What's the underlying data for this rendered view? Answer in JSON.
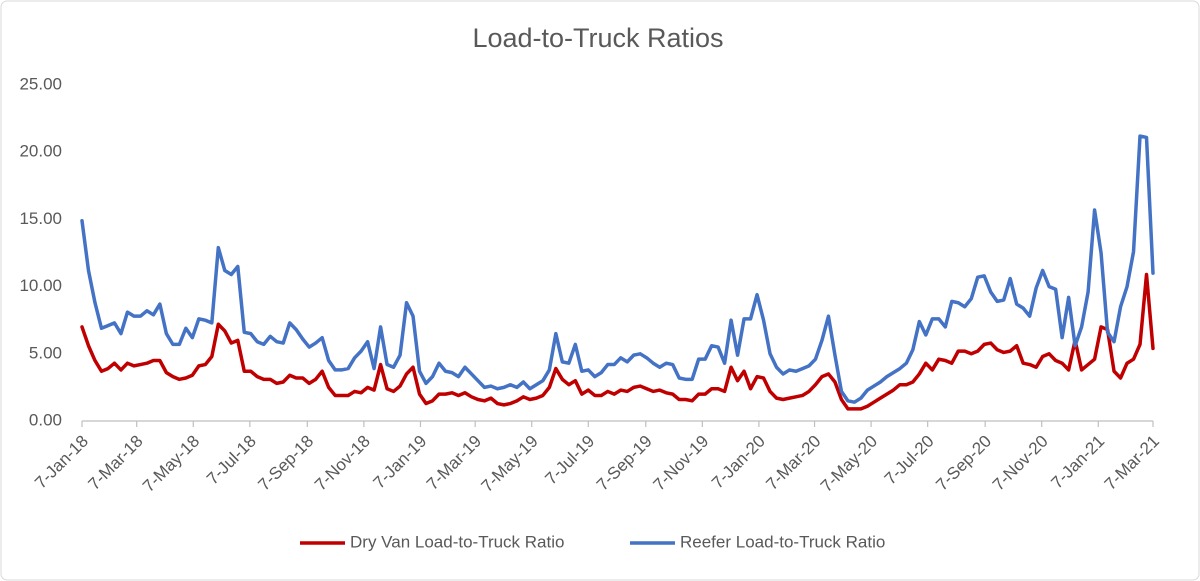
{
  "chart_data": {
    "type": "line",
    "title": "Load-to-Truck Ratios",
    "x": [
      "2018-01-07",
      "2018-01-14",
      "2018-01-21",
      "2018-01-28",
      "2018-02-04",
      "2018-02-11",
      "2018-02-18",
      "2018-02-25",
      "2018-03-04",
      "2018-03-11",
      "2018-03-18",
      "2018-03-25",
      "2018-04-01",
      "2018-04-08",
      "2018-04-15",
      "2018-04-22",
      "2018-04-29",
      "2018-05-06",
      "2018-05-13",
      "2018-05-20",
      "2018-05-27",
      "2018-06-03",
      "2018-06-10",
      "2018-06-17",
      "2018-06-24",
      "2018-07-01",
      "2018-07-08",
      "2018-07-15",
      "2018-07-22",
      "2018-07-29",
      "2018-08-05",
      "2018-08-12",
      "2018-08-19",
      "2018-08-26",
      "2018-09-02",
      "2018-09-09",
      "2018-09-16",
      "2018-09-23",
      "2018-09-30",
      "2018-10-07",
      "2018-10-14",
      "2018-10-21",
      "2018-10-28",
      "2018-11-04",
      "2018-11-11",
      "2018-11-18",
      "2018-11-25",
      "2018-12-02",
      "2018-12-09",
      "2018-12-16",
      "2018-12-23",
      "2018-12-30",
      "2019-01-06",
      "2019-01-13",
      "2019-01-20",
      "2019-01-27",
      "2019-02-03",
      "2019-02-10",
      "2019-02-17",
      "2019-02-24",
      "2019-03-03",
      "2019-03-10",
      "2019-03-17",
      "2019-03-24",
      "2019-03-31",
      "2019-04-07",
      "2019-04-14",
      "2019-04-21",
      "2019-04-28",
      "2019-05-05",
      "2019-05-12",
      "2019-05-19",
      "2019-05-26",
      "2019-06-02",
      "2019-06-09",
      "2019-06-16",
      "2019-06-23",
      "2019-06-30",
      "2019-07-07",
      "2019-07-14",
      "2019-07-21",
      "2019-07-28",
      "2019-08-04",
      "2019-08-11",
      "2019-08-18",
      "2019-08-25",
      "2019-09-01",
      "2019-09-08",
      "2019-09-15",
      "2019-09-22",
      "2019-09-29",
      "2019-10-06",
      "2019-10-13",
      "2019-10-20",
      "2019-10-27",
      "2019-11-03",
      "2019-11-10",
      "2019-11-17",
      "2019-11-24",
      "2019-12-01",
      "2019-12-08",
      "2019-12-15",
      "2019-12-22",
      "2019-12-29",
      "2020-01-05",
      "2020-01-12",
      "2020-01-19",
      "2020-01-26",
      "2020-02-02",
      "2020-02-09",
      "2020-02-16",
      "2020-02-23",
      "2020-03-01",
      "2020-03-08",
      "2020-03-15",
      "2020-03-22",
      "2020-03-29",
      "2020-04-05",
      "2020-04-12",
      "2020-04-19",
      "2020-04-26",
      "2020-05-03",
      "2020-05-10",
      "2020-05-17",
      "2020-05-24",
      "2020-05-31",
      "2020-06-07",
      "2020-06-14",
      "2020-06-21",
      "2020-06-28",
      "2020-07-05",
      "2020-07-12",
      "2020-07-19",
      "2020-07-26",
      "2020-08-02",
      "2020-08-09",
      "2020-08-16",
      "2020-08-23",
      "2020-08-30",
      "2020-09-06",
      "2020-09-13",
      "2020-09-20",
      "2020-09-27",
      "2020-10-04",
      "2020-10-11",
      "2020-10-18",
      "2020-10-25",
      "2020-11-01",
      "2020-11-08",
      "2020-11-15",
      "2020-11-22",
      "2020-11-29",
      "2020-12-06",
      "2020-12-13",
      "2020-12-20",
      "2020-12-27",
      "2021-01-03",
      "2021-01-10",
      "2021-01-17",
      "2021-01-24",
      "2021-01-31",
      "2021-02-07",
      "2021-02-14",
      "2021-02-21",
      "2021-02-28",
      "2021-03-07"
    ],
    "series": [
      {
        "name": "Dry Van Load-to-Truck Ratio",
        "color": "#c00000",
        "values": [
          7.0,
          5.6,
          4.5,
          3.7,
          3.9,
          4.3,
          3.8,
          4.3,
          4.1,
          4.2,
          4.3,
          4.5,
          4.5,
          3.6,
          3.3,
          3.1,
          3.2,
          3.4,
          4.1,
          4.2,
          4.8,
          7.2,
          6.7,
          5.8,
          6.0,
          3.7,
          3.7,
          3.3,
          3.1,
          3.1,
          2.8,
          2.9,
          3.4,
          3.2,
          3.2,
          2.8,
          3.1,
          3.7,
          2.5,
          1.9,
          1.9,
          1.9,
          2.2,
          2.1,
          2.5,
          2.3,
          4.2,
          2.4,
          2.2,
          2.6,
          3.5,
          4.0,
          2.0,
          1.3,
          1.5,
          2.0,
          2.0,
          2.1,
          1.9,
          2.1,
          1.8,
          1.6,
          1.5,
          1.7,
          1.3,
          1.2,
          1.3,
          1.5,
          1.8,
          1.6,
          1.7,
          1.9,
          2.5,
          3.9,
          3.1,
          2.7,
          3.0,
          2.0,
          2.3,
          1.9,
          1.9,
          2.2,
          2.0,
          2.3,
          2.2,
          2.5,
          2.6,
          2.4,
          2.2,
          2.3,
          2.1,
          2.0,
          1.6,
          1.6,
          1.5,
          2.0,
          2.0,
          2.4,
          2.4,
          2.2,
          4.0,
          3.0,
          3.7,
          2.4,
          3.3,
          3.2,
          2.2,
          1.7,
          1.6,
          1.7,
          1.8,
          1.9,
          2.2,
          2.7,
          3.3,
          3.5,
          2.9,
          1.6,
          0.9,
          0.9,
          0.9,
          1.1,
          1.4,
          1.7,
          2.0,
          2.3,
          2.7,
          2.7,
          2.9,
          3.5,
          4.3,
          3.8,
          4.6,
          4.5,
          4.3,
          5.2,
          5.2,
          5.0,
          5.2,
          5.7,
          5.8,
          5.3,
          5.1,
          5.2,
          5.6,
          4.3,
          4.2,
          4.0,
          4.8,
          5.0,
          4.5,
          4.3,
          3.8,
          6.0,
          3.8,
          4.2,
          4.6,
          7.0,
          6.8,
          3.7,
          3.2,
          4.3,
          4.6,
          5.7,
          10.9,
          5.4
        ]
      },
      {
        "name": "Reefer Load-to-Truck Ratio",
        "color": "#4472c4",
        "values": [
          14.9,
          11.2,
          8.8,
          6.9,
          7.1,
          7.3,
          6.5,
          8.1,
          7.8,
          7.8,
          8.2,
          7.9,
          8.7,
          6.5,
          5.7,
          5.7,
          6.9,
          6.2,
          7.6,
          7.5,
          7.3,
          12.9,
          11.2,
          10.9,
          11.5,
          6.6,
          6.5,
          5.9,
          5.7,
          6.3,
          5.9,
          5.8,
          7.3,
          6.8,
          6.1,
          5.5,
          5.8,
          6.2,
          4.5,
          3.8,
          3.8,
          3.9,
          4.7,
          5.2,
          5.9,
          3.9,
          7.0,
          4.2,
          4.0,
          4.9,
          8.8,
          7.8,
          3.7,
          2.8,
          3.3,
          4.3,
          3.7,
          3.6,
          3.3,
          4.0,
          3.5,
          3.0,
          2.5,
          2.6,
          2.4,
          2.5,
          2.7,
          2.5,
          2.9,
          2.4,
          2.7,
          3.0,
          3.8,
          6.5,
          4.4,
          4.3,
          5.7,
          3.7,
          3.8,
          3.3,
          3.6,
          4.2,
          4.2,
          4.7,
          4.4,
          4.9,
          5.0,
          4.7,
          4.3,
          4.0,
          4.3,
          4.2,
          3.2,
          3.1,
          3.1,
          4.6,
          4.6,
          5.6,
          5.5,
          4.3,
          7.5,
          4.9,
          7.6,
          7.6,
          9.4,
          7.5,
          5.0,
          4.0,
          3.5,
          3.8,
          3.7,
          3.9,
          4.1,
          4.6,
          6.0,
          7.8,
          4.9,
          2.2,
          1.5,
          1.4,
          1.7,
          2.3,
          2.6,
          2.9,
          3.3,
          3.6,
          3.9,
          4.3,
          5.3,
          7.4,
          6.4,
          7.6,
          7.6,
          7.0,
          8.9,
          8.8,
          8.5,
          9.1,
          10.7,
          10.8,
          9.6,
          8.9,
          9.0,
          10.6,
          8.7,
          8.4,
          7.8,
          9.9,
          11.2,
          10.0,
          9.8,
          6.2,
          9.2,
          5.6,
          7.0,
          9.6,
          15.7,
          12.5,
          6.6,
          5.9,
          8.5,
          10.0,
          12.6,
          21.2,
          21.1,
          11.0
        ]
      }
    ],
    "xlim": [
      "2018-01-07",
      "2021-03-07"
    ],
    "xticks": [
      {
        "value": "2018-01-07",
        "label": "7-Jan-18"
      },
      {
        "value": "2018-03-07",
        "label": "7-Mar-18"
      },
      {
        "value": "2018-05-07",
        "label": "7-May-18"
      },
      {
        "value": "2018-07-07",
        "label": "7-Jul-18"
      },
      {
        "value": "2018-09-07",
        "label": "7-Sep-18"
      },
      {
        "value": "2018-11-07",
        "label": "7-Nov-18"
      },
      {
        "value": "2019-01-07",
        "label": "7-Jan-19"
      },
      {
        "value": "2019-03-07",
        "label": "7-Mar-19"
      },
      {
        "value": "2019-05-07",
        "label": "7-May-19"
      },
      {
        "value": "2019-07-07",
        "label": "7-Jul-19"
      },
      {
        "value": "2019-09-07",
        "label": "7-Sep-19"
      },
      {
        "value": "2019-11-07",
        "label": "7-Nov-19"
      },
      {
        "value": "2020-01-07",
        "label": "7-Jan-20"
      },
      {
        "value": "2020-03-07",
        "label": "7-Mar-20"
      },
      {
        "value": "2020-05-07",
        "label": "7-May-20"
      },
      {
        "value": "2020-07-07",
        "label": "7-Jul-20"
      },
      {
        "value": "2020-09-07",
        "label": "7-Sep-20"
      },
      {
        "value": "2020-11-07",
        "label": "7-Nov-20"
      },
      {
        "value": "2021-01-07",
        "label": "7-Jan-21"
      },
      {
        "value": "2021-03-07",
        "label": "7-Mar-21"
      }
    ],
    "ylim": [
      0,
      25
    ],
    "yticks": [
      {
        "value": 0,
        "label": "0.00"
      },
      {
        "value": 5,
        "label": "5.00"
      },
      {
        "value": 10,
        "label": "10.00"
      },
      {
        "value": 15,
        "label": "15.00"
      },
      {
        "value": 20,
        "label": "20.00"
      },
      {
        "value": 25,
        "label": "25.00"
      }
    ],
    "grid": false,
    "legend": "bottom"
  }
}
